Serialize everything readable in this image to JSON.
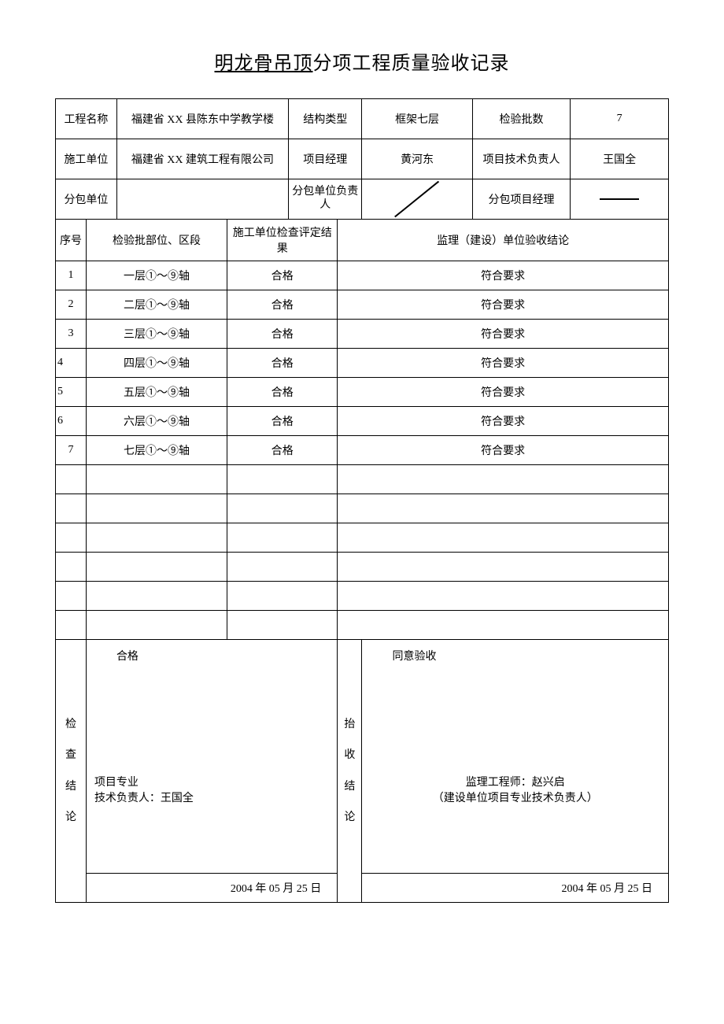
{
  "title_underline": "明龙骨吊顶",
  "title_rest": "分项工程质量验收记录",
  "header": {
    "project_name_label": "工程名称",
    "project_name": "福建省 XX 县陈东中学教学楼",
    "structure_type_label": "结构类型",
    "structure_type": "框架七层",
    "batch_count_label": "检验批数",
    "batch_count": "7",
    "construction_unit_label": "施工单位",
    "construction_unit": "福建省 XX 建筑工程有限公司",
    "pm_label": "项目经理",
    "pm": "黄河东",
    "tech_lead_label": "项目技术负责人",
    "tech_lead": "王国全",
    "subcontract_unit_label": "分包单位",
    "subcontract_unit": "",
    "subcontract_lead_label": "分包单位负责人",
    "subcontract_lead": "",
    "subcontract_pm_label": "分包项目经理",
    "subcontract_pm": ""
  },
  "columns": {
    "seq": "序号",
    "location": "检验批部位、区段",
    "result": "施工单位检查评定结果",
    "conclusion": "监理（建设）单位验收结论"
  },
  "rows": [
    {
      "seq": "1",
      "location": "一层①～⑨轴",
      "result": "合格",
      "conclusion": "符合要求"
    },
    {
      "seq": "2",
      "location": "二层①～⑨轴",
      "result": "合格",
      "conclusion": "符合要求"
    },
    {
      "seq": "3",
      "location": "三层①～⑨轴",
      "result": "合格",
      "conclusion": "符合要求"
    },
    {
      "seq": "4",
      "location": "四层①～⑨轴",
      "result": "合格",
      "conclusion": "符合要求"
    },
    {
      "seq": "5",
      "location": "五层①～⑨轴",
      "result": "合格",
      "conclusion": "符合要求"
    },
    {
      "seq": "6",
      "location": "六层①～⑨轴",
      "result": "合格",
      "conclusion": "符合要求"
    },
    {
      "seq": "7",
      "location": "七层①～⑨轴",
      "result": "合格",
      "conclusion": "符合要求"
    }
  ],
  "empty_rows": 6,
  "bottom": {
    "left_label_1": "检",
    "left_label_2": "查",
    "left_label_3": "结",
    "left_label_4": "论",
    "left_top": "合格",
    "left_mid_1": "项目专业",
    "left_mid_2": "技术负责人：王国全",
    "left_date": "2004 年 05 月 25 日",
    "right_label_1": "抬",
    "right_label_2": "收",
    "right_label_3": "结",
    "right_label_4": "论",
    "right_top": "同意验收",
    "right_mid_1": "监理工程师：赵兴启",
    "right_mid_2": "（建设单位项目专业技术负责人）",
    "right_date": "2004 年 05 月 25 日"
  }
}
